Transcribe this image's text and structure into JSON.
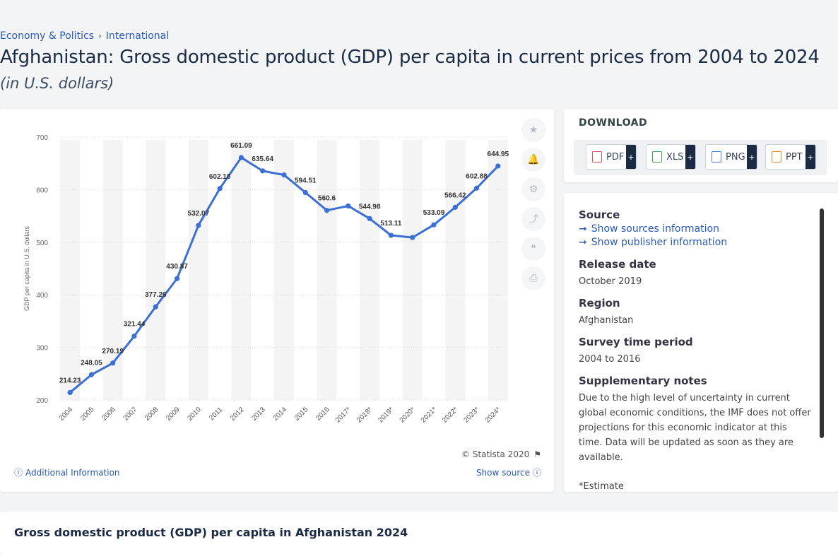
{
  "breadcrumb": {
    "item1": "Economy & Politics",
    "separator": "›",
    "item2": "International"
  },
  "page": {
    "title": "Afghanistan: Gross domestic product (GDP) per capita in current prices from 2004 to 2024",
    "subtitle": "(in U.S. dollars)"
  },
  "chart_data": {
    "type": "line",
    "categories": [
      "2004",
      "2005",
      "2006",
      "2007",
      "2008",
      "2009",
      "2010",
      "2011",
      "2012",
      "2013",
      "2014",
      "2015",
      "2016",
      "2017*",
      "2018*",
      "2019*",
      "2020*",
      "2021*",
      "2022*",
      "2023*",
      "2024*"
    ],
    "values": [
      214.23,
      248.05,
      270.19,
      321.44,
      377.26,
      430.87,
      532.07,
      602.18,
      661.09,
      635.64,
      628.0,
      594.51,
      560.6,
      569.0,
      544.98,
      513.11,
      509.0,
      533.09,
      566.42,
      602.88,
      644.95
    ],
    "data_labels": [
      "214.23",
      "248.05",
      "270.19",
      "321.44",
      "377.26",
      "430.87",
      "532.07",
      "602.18",
      "661.09",
      "635.64",
      "",
      "594.51",
      "560.6",
      "",
      "544.98",
      "513.11",
      "",
      "533.09",
      "566.42",
      "602.88",
      "644.95"
    ],
    "ylabel": "GDP per capita in U.S. dollars",
    "yticks": [
      "200",
      "300",
      "400",
      "500",
      "600",
      "700"
    ],
    "ylim": [
      200,
      700
    ],
    "grid": true,
    "line_color": "#3b6fd4"
  },
  "tools": {
    "star": "★",
    "bell": "🔔",
    "gear": "⚙",
    "share": "⤴",
    "quote": "❝",
    "print": "⎙"
  },
  "chart_footer": {
    "copyright": "© Statista 2020",
    "flag": "⚑",
    "additional_info": "Additional Information",
    "show_source": "Show source",
    "info_glyph": "ⓘ"
  },
  "download": {
    "title": "DOWNLOAD",
    "buttons": [
      {
        "label": "PDF",
        "plus": "+",
        "color": "#d9534f"
      },
      {
        "label": "XLS",
        "plus": "+",
        "color": "#3fa34d"
      },
      {
        "label": "PNG",
        "plus": "+",
        "color": "#4a7bd0"
      },
      {
        "label": "PPT",
        "plus": "+",
        "color": "#e08a2e"
      }
    ]
  },
  "info": {
    "source_label": "Source",
    "show_sources": "Show sources information",
    "show_publisher": "Show publisher information",
    "arrow": "➞",
    "release_label": "Release date",
    "release_value": "October 2019",
    "region_label": "Region",
    "region_value": "Afghanistan",
    "survey_label": "Survey time period",
    "survey_value": "2004 to 2016",
    "notes_label": "Supplementary notes",
    "notes_value": "Due to the high level of uncertainty in current global economic conditions, the IMF does not offer projections for this economic indicator at this time. Data will be updated as soon as they are available.",
    "estimate_note": "*Estimate"
  },
  "bottom": {
    "title": "Gross domestic product (GDP) per capita in Afghanistan 2024"
  }
}
